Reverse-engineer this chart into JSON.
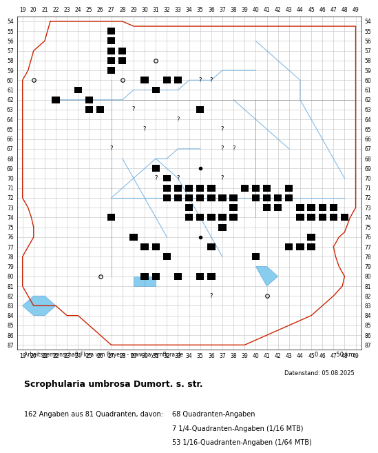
{
  "title": "Scrophularia umbrosa Dumort. s. str.",
  "subtitle": "Arbeitsgemeinschaft Flora von Bayern - www.bayernflora.de",
  "date_label": "Datenstand: 05.08.2025",
  "scale_label": "0          50 km",
  "stats_line1": "162 Angaben aus 81 Quadranten, davon:",
  "stats_col2_line1": "68 Quadranten-Angaben",
  "stats_col2_line2": "7 1/4-Quadranten-Angaben (1/16 MTB)",
  "stats_col2_line3": "53 1/16-Quadranten-Angaben (1/64 MTB)",
  "x_min": 19,
  "x_max": 49,
  "y_min": 54,
  "y_max": 87,
  "bg_color": "#ffffff",
  "grid_color": "#cccccc",
  "outer_border_color": "#cc2200",
  "inner_border_color": "#888888",
  "river_color": "#66aadd",
  "lake_color": "#88ccee",
  "dot_color": "#000000",
  "filled_squares": [
    [
      27,
      55
    ],
    [
      27,
      56
    ],
    [
      27,
      57
    ],
    [
      27,
      58
    ],
    [
      27,
      59
    ],
    [
      28,
      57
    ],
    [
      28,
      58
    ],
    [
      24,
      61
    ],
    [
      25,
      62
    ],
    [
      25,
      63
    ],
    [
      26,
      63
    ],
    [
      22,
      62
    ],
    [
      30,
      60
    ],
    [
      31,
      61
    ],
    [
      32,
      60
    ],
    [
      33,
      60
    ],
    [
      35,
      63
    ],
    [
      31,
      69
    ],
    [
      32,
      70
    ],
    [
      32,
      71
    ],
    [
      32,
      72
    ],
    [
      33,
      71
    ],
    [
      33,
      72
    ],
    [
      34,
      71
    ],
    [
      34,
      72
    ],
    [
      34,
      73
    ],
    [
      35,
      71
    ],
    [
      35,
      72
    ],
    [
      36,
      71
    ],
    [
      36,
      72
    ],
    [
      34,
      74
    ],
    [
      35,
      74
    ],
    [
      36,
      74
    ],
    [
      36,
      77
    ],
    [
      37,
      74
    ],
    [
      37,
      75
    ],
    [
      37,
      72
    ],
    [
      38,
      72
    ],
    [
      38,
      73
    ],
    [
      38,
      74
    ],
    [
      39,
      71
    ],
    [
      40,
      71
    ],
    [
      40,
      72
    ],
    [
      41,
      71
    ],
    [
      41,
      72
    ],
    [
      41,
      73
    ],
    [
      42,
      72
    ],
    [
      42,
      73
    ],
    [
      43,
      71
    ],
    [
      43,
      72
    ],
    [
      44,
      73
    ],
    [
      44,
      74
    ],
    [
      45,
      73
    ],
    [
      45,
      74
    ],
    [
      45,
      76
    ],
    [
      45,
      77
    ],
    [
      46,
      73
    ],
    [
      46,
      74
    ],
    [
      47,
      73
    ],
    [
      47,
      74
    ],
    [
      48,
      74
    ],
    [
      27,
      74
    ],
    [
      29,
      76
    ],
    [
      30,
      77
    ],
    [
      30,
      80
    ],
    [
      31,
      77
    ],
    [
      31,
      80
    ],
    [
      32,
      78
    ],
    [
      33,
      80
    ],
    [
      35,
      80
    ],
    [
      36,
      80
    ],
    [
      40,
      78
    ],
    [
      43,
      77
    ],
    [
      44,
      77
    ]
  ],
  "small_dots": [
    [
      29,
      76
    ],
    [
      32,
      71
    ],
    [
      35,
      69
    ],
    [
      35,
      76
    ]
  ],
  "open_circles": [
    [
      20,
      60
    ],
    [
      28,
      60
    ],
    [
      31,
      58
    ],
    [
      26,
      80
    ],
    [
      41,
      82
    ]
  ],
  "question_marks": [
    [
      28,
      57
    ],
    [
      29,
      63
    ],
    [
      30,
      65
    ],
    [
      27,
      67
    ],
    [
      35,
      60
    ],
    [
      36,
      60
    ],
    [
      33,
      64
    ],
    [
      37,
      65
    ],
    [
      37,
      67
    ],
    [
      38,
      67
    ],
    [
      31,
      70
    ],
    [
      33,
      70
    ],
    [
      37,
      70
    ],
    [
      36,
      82
    ]
  ],
  "red_border_x": [
    21.5,
    22,
    23,
    24,
    25,
    26,
    27,
    27.3,
    28,
    29,
    30,
    32,
    34,
    36,
    38,
    40,
    42,
    44,
    46,
    48,
    49,
    49,
    49,
    49,
    49,
    49,
    49,
    49,
    49,
    49,
    49,
    48.5,
    48,
    47.5,
    47,
    47.2,
    47.5,
    48,
    47.8,
    47,
    46,
    45.5,
    45,
    44,
    43,
    42,
    41,
    40,
    39,
    38,
    37,
    36,
    35,
    34,
    33,
    32,
    31,
    30,
    29,
    28,
    27,
    26.5,
    26,
    25.5,
    25,
    24.5,
    24,
    23,
    22.5,
    22,
    21.5,
    21,
    20.5,
    20,
    19.5,
    19,
    19,
    19,
    19,
    19.5,
    20,
    20,
    19.8,
    19.5,
    19,
    19,
    19,
    19,
    19,
    19,
    19,
    19.5,
    20,
    21,
    21.5
  ],
  "red_border_y": [
    54,
    54,
    54,
    54,
    54,
    54,
    54,
    54,
    54,
    54.5,
    54.5,
    54.5,
    54.5,
    54.5,
    54.5,
    54.5,
    54.5,
    54.5,
    54.5,
    54.5,
    54.5,
    55,
    57,
    59,
    61,
    63,
    65,
    67,
    69,
    71,
    73,
    74,
    75.5,
    76,
    77,
    78,
    79,
    80,
    81,
    82,
    83,
    83.5,
    84,
    84.5,
    85,
    85.5,
    86,
    86.5,
    87,
    87,
    87,
    87,
    87,
    87,
    87,
    87,
    87,
    87,
    87,
    87,
    87,
    86.5,
    86,
    85.5,
    85,
    84.5,
    84,
    84,
    83.5,
    83,
    83,
    83,
    83,
    83,
    82,
    81,
    80,
    79,
    78,
    77,
    76,
    75,
    74,
    73,
    72,
    70,
    68,
    66,
    64,
    62,
    60,
    59,
    57,
    56,
    54
  ],
  "rivers": [
    {
      "x": [
        40,
        41,
        42,
        43,
        44,
        44,
        45,
        46,
        47,
        48
      ],
      "y": [
        56,
        57,
        58,
        59,
        60,
        62,
        64,
        66,
        68,
        70
      ]
    },
    {
      "x": [
        27,
        28,
        29,
        30,
        31,
        32,
        33,
        34,
        35,
        36,
        37,
        38,
        39,
        40,
        41,
        42,
        43,
        44,
        45,
        46,
        47,
        48
      ],
      "y": [
        72,
        72,
        72,
        72,
        72,
        72,
        72,
        72,
        72,
        72,
        72,
        72,
        72,
        72,
        72,
        72,
        72,
        72,
        72,
        72,
        72,
        72
      ]
    },
    {
      "x": [
        22,
        24,
        26,
        28,
        29,
        30,
        31,
        32,
        33,
        34,
        35,
        36,
        37,
        38,
        39,
        40
      ],
      "y": [
        62,
        62,
        62,
        62,
        61,
        61,
        61,
        61,
        61,
        60,
        60,
        60,
        59,
        59,
        59,
        59
      ]
    },
    {
      "x": [
        31,
        32,
        33,
        34,
        35,
        36,
        37
      ],
      "y": [
        68,
        69,
        70,
        72,
        74,
        76,
        78
      ]
    },
    {
      "x": [
        28,
        29,
        30,
        31,
        32
      ],
      "y": [
        68,
        70,
        72,
        74,
        76
      ]
    },
    {
      "x": [
        38,
        39,
        40,
        41,
        42,
        43
      ],
      "y": [
        62,
        63,
        64,
        65,
        66,
        67
      ]
    },
    {
      "x": [
        27,
        28,
        29,
        30,
        31,
        32,
        33,
        34,
        35
      ],
      "y": [
        72,
        71,
        70,
        69,
        68,
        68,
        67,
        67,
        67
      ]
    }
  ],
  "lakes": [
    {
      "x": [
        40,
        41,
        42,
        41
      ],
      "y": [
        79,
        79,
        80,
        81
      ]
    },
    {
      "x": [
        29,
        30,
        30,
        29
      ],
      "y": [
        80,
        80,
        81,
        81
      ]
    },
    {
      "x": [
        30,
        31,
        31,
        30
      ],
      "y": [
        80,
        80,
        81,
        81
      ]
    },
    {
      "x": [
        19,
        20,
        21,
        22,
        21,
        20
      ],
      "y": [
        83,
        82,
        82,
        83,
        84,
        84
      ]
    }
  ],
  "inner_gray": [
    {
      "x": [
        22,
        24,
        26,
        27,
        28,
        30,
        32,
        34,
        35,
        36,
        38,
        40,
        42,
        44,
        45,
        46,
        47,
        49
      ],
      "y": [
        62,
        62,
        62,
        62,
        62,
        62,
        62,
        62,
        62,
        62,
        62,
        62,
        62,
        62,
        62,
        62,
        62,
        62
      ]
    },
    {
      "x": [
        27,
        27,
        27,
        27,
        27,
        27,
        27,
        27,
        27,
        27,
        27
      ],
      "y": [
        60,
        62,
        64,
        66,
        68,
        70,
        72,
        74,
        76,
        78,
        80
      ]
    },
    {
      "x": [
        40,
        40,
        40,
        40,
        40,
        40,
        40
      ],
      "y": [
        62,
        64,
        66,
        68,
        70,
        72,
        74
      ]
    },
    {
      "x": [
        27,
        29,
        31,
        33,
        35,
        37,
        39,
        40
      ],
      "y": [
        72,
        72,
        72,
        72,
        72,
        72,
        72,
        72
      ]
    }
  ]
}
